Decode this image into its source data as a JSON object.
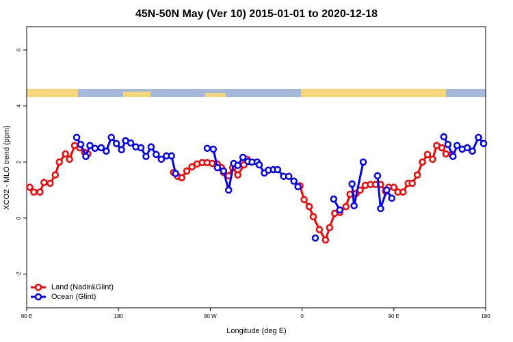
{
  "chart_data": {
    "type": "line",
    "title": "45N-50N May (Ver 10)   2015-01-01 to 2020-12-18",
    "x_label": "Longitude (deg E)",
    "y_label": "XCO2 - MLO trend (ppm)",
    "xlim": [
      90,
      540
    ],
    "ylim": [
      -3.2,
      6.83
    ],
    "xticks": [
      {
        "value": 90,
        "label": "90 E"
      },
      180,
      {
        "value": 270,
        "label": "90 W"
      },
      {
        "value": 360,
        "label": "0"
      },
      {
        "value": 450,
        "label": "90 E"
      },
      {
        "value": 540,
        "label": "180"
      }
    ],
    "yticks": [
      -2,
      0,
      2,
      4,
      6
    ],
    "legend": "bottomleft",
    "series": [
      {
        "name": "Land (Nadir&Glint)",
        "color": "#ff0000",
        "x": [
          93,
          97,
          103,
          107,
          113,
          118,
          122,
          128,
          132,
          137,
          142,
          147,
          150,
          null,
          234,
          238,
          242,
          247,
          252,
          257,
          262,
          267,
          272,
          277,
          281,
          283,
          288,
          292,
          297,
          303,
          306,
          null,
          358,
          362,
          367,
          371,
          377,
          383,
          387,
          392,
          397,
          403,
          407,
          413,
          417,
          422,
          427,
          432,
          437,
          442,
          445,
          450,
          454,
          459,
          464,
          468,
          473,
          478,
          483,
          488,
          492,
          497,
          501,
          507
        ],
        "values": [
          1.1,
          0.93,
          0.93,
          1.27,
          1.24,
          1.54,
          2.0,
          2.29,
          2.1,
          2.59,
          2.51,
          2.34,
          2.29,
          null,
          1.63,
          1.49,
          1.44,
          1.68,
          1.83,
          1.93,
          1.98,
          1.98,
          1.95,
          1.93,
          1.8,
          1.63,
          1.51,
          1.8,
          1.54,
          1.9,
          2.1,
          null,
          1.15,
          0.66,
          0.41,
          0.05,
          -0.41,
          -0.78,
          -0.34,
          0.17,
          0.2,
          0.41,
          0.85,
          0.88,
          1.0,
          1.17,
          1.2,
          1.2,
          1.2,
          0.95,
          1.1,
          1.1,
          0.93,
          0.93,
          1.24,
          1.24,
          1.54,
          2.0,
          2.27,
          2.1,
          2.59,
          2.51,
          2.29,
          2.27
        ]
      },
      {
        "name": "Ocean (Glint)",
        "color": "#0000ff",
        "x": [
          139,
          143,
          148,
          152,
          157,
          163,
          168,
          173,
          178,
          183,
          187,
          192,
          197,
          202,
          207,
          212,
          217,
          222,
          227,
          232,
          236,
          null,
          267,
          273,
          277,
          283,
          288,
          293,
          297,
          302,
          307,
          311,
          316,
          318,
          323,
          327,
          332,
          336,
          342,
          347,
          352,
          356,
          null,
          373,
          null,
          391,
          397,
          null,
          409,
          411,
          420,
          null,
          434,
          437,
          443,
          448,
          null,
          499,
          503,
          508,
          512,
          517,
          522,
          527,
          533,
          538
        ],
        "values": [
          2.88,
          2.63,
          2.2,
          2.59,
          2.49,
          2.51,
          2.39,
          2.88,
          2.66,
          2.44,
          2.76,
          2.68,
          2.54,
          2.51,
          2.2,
          2.54,
          2.27,
          2.1,
          2.22,
          2.22,
          1.59,
          null,
          2.49,
          2.46,
          1.8,
          1.68,
          1.0,
          1.95,
          1.88,
          2.17,
          2.02,
          2.0,
          2.0,
          1.9,
          1.61,
          1.71,
          1.73,
          1.73,
          1.49,
          1.49,
          1.32,
          1.12,
          null,
          -0.71,
          null,
          0.68,
          0.29,
          null,
          1.22,
          0.44,
          2.0,
          null,
          1.51,
          0.34,
          1.0,
          0.71,
          null,
          2.9,
          2.63,
          2.2,
          2.59,
          2.46,
          2.51,
          2.39,
          2.88,
          2.66
        ]
      }
    ]
  }
}
